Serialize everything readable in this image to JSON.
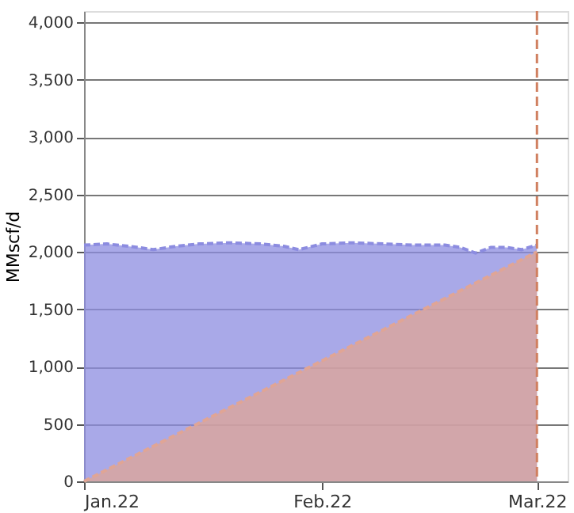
{
  "chart_data": {
    "type": "area",
    "ylabel": "MMscf/d",
    "xlim": [
      "2022-01-01",
      "2022-03-05"
    ],
    "xticks": [
      {
        "value": "2022-01-01",
        "label": "Jan.22"
      },
      {
        "value": "2022-02-01",
        "label": "Feb.22"
      },
      {
        "value": "2022-03-01",
        "label": "Mar.22"
      }
    ],
    "ylim": [
      0,
      4100
    ],
    "yticks": [
      0,
      500,
      {
        "value": 1000,
        "label": "1,000"
      },
      {
        "value": 1500,
        "label": "1,500"
      },
      {
        "value": 2000,
        "label": "2,000"
      },
      {
        "value": 2500,
        "label": "2,500"
      },
      {
        "value": 3000,
        "label": "3,000"
      },
      {
        "value": 3500,
        "label": "3,500"
      },
      {
        "value": 4000,
        "label": "4,000"
      }
    ],
    "grid": "y",
    "series": [
      {
        "color": "#8c8ce0",
        "x": [
          "2022-01-01",
          "2022-01-04",
          "2022-01-08",
          "2022-01-10",
          "2022-01-13",
          "2022-01-16",
          "2022-01-20",
          "2022-01-24",
          "2022-01-27",
          "2022-01-29",
          "2022-02-01",
          "2022-02-05",
          "2022-02-09",
          "2022-02-13",
          "2022-02-17",
          "2022-02-19",
          "2022-02-21",
          "2022-02-23",
          "2022-02-25",
          "2022-02-27",
          "2022-03-01"
        ],
        "values": [
          2060,
          2070,
          2040,
          2020,
          2050,
          2070,
          2080,
          2070,
          2050,
          2020,
          2070,
          2080,
          2070,
          2060,
          2060,
          2040,
          1990,
          2040,
          2040,
          2020,
          2060
        ]
      },
      {
        "color": "#e0a595",
        "x": [
          "2022-01-01",
          "2022-03-01"
        ],
        "values": [
          0,
          2000
        ]
      }
    ],
    "ref_lines": [
      {
        "axis": "x",
        "value": "2022-03-01",
        "color": "#d08060",
        "line_style": "dashed"
      }
    ]
  }
}
